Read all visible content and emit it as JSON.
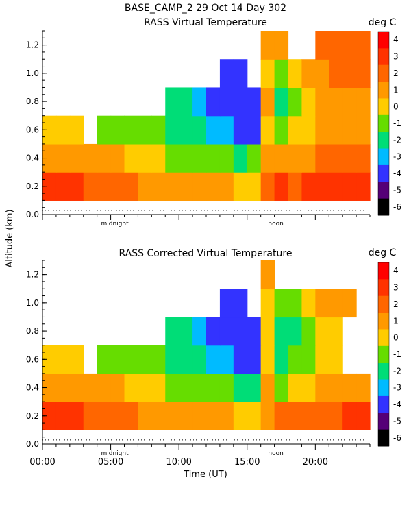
{
  "header": "BASE_CAMP_2  29 Oct 14 Day 302",
  "colorbar": {
    "unit": "deg C",
    "labels": [
      "4",
      "3",
      "2",
      "1",
      "0",
      "-1",
      "-2",
      "-3",
      "-4",
      "-5",
      "-6"
    ],
    "colors": [
      "#ff0000",
      "#ff3300",
      "#ff6600",
      "#ff9900",
      "#ffcc00",
      "#66dd00",
      "#00dd77",
      "#00bbff",
      "#3333ff",
      "#550077",
      "#000000"
    ]
  },
  "shared_axes": {
    "ylabel": "Altitude (km)",
    "xlabel": "Time (UT)",
    "yticks": [
      "0.0",
      "0.2",
      "0.4",
      "0.6",
      "0.8",
      "1.0",
      "1.2"
    ],
    "xticks": [
      "00:00",
      "05:00",
      "10:00",
      "15:00",
      "20:00"
    ],
    "markers": [
      "midnight",
      "noon"
    ]
  },
  "chart_data": [
    {
      "type": "heatmap",
      "title": "RASS Virtual Temperature",
      "xlabel": "Time (UT)",
      "ylabel": "Altitude (km)",
      "xlim": [
        0,
        24
      ],
      "ylim": [
        0,
        1.3
      ],
      "zunit": "deg C",
      "zlim": [
        -6,
        5
      ],
      "x": [
        0,
        1,
        2,
        3,
        4,
        5,
        6,
        7,
        8,
        9,
        10,
        11,
        12,
        13,
        14,
        15,
        16,
        17,
        18,
        19,
        20,
        21,
        22,
        23
      ],
      "y": [
        0.2,
        0.4,
        0.6,
        0.8,
        1.0,
        1.2
      ],
      "z": [
        [
          3,
          3,
          3,
          2,
          2,
          2,
          2,
          1,
          1,
          1,
          1,
          1,
          1,
          1,
          0,
          0,
          2,
          3,
          2,
          3,
          3,
          3,
          3,
          3
        ],
        [
          1,
          1,
          1,
          1,
          1,
          1,
          0,
          0,
          0,
          -1,
          -1,
          -1,
          -1,
          -1,
          -2,
          -1,
          1,
          1,
          1,
          1,
          2,
          2,
          2,
          2
        ],
        [
          0,
          0,
          0,
          null,
          -1,
          -1,
          -1,
          -1,
          -1,
          -2,
          -2,
          -2,
          -3,
          -3,
          -4,
          -4,
          0,
          -1,
          0,
          0,
          1,
          1,
          1,
          1
        ],
        [
          null,
          null,
          null,
          null,
          null,
          null,
          null,
          null,
          null,
          -2,
          -2,
          -3,
          -4,
          -4,
          -4,
          -4,
          1,
          -2,
          -1,
          0,
          1,
          1,
          1,
          1
        ],
        [
          null,
          null,
          null,
          null,
          null,
          null,
          null,
          null,
          null,
          null,
          null,
          null,
          null,
          -4,
          -4,
          null,
          0,
          -1,
          0,
          1,
          1,
          2,
          2,
          2
        ],
        [
          null,
          null,
          null,
          null,
          null,
          null,
          null,
          null,
          null,
          null,
          null,
          null,
          null,
          null,
          null,
          null,
          1,
          1,
          null,
          null,
          2,
          2,
          2,
          2
        ]
      ]
    },
    {
      "type": "heatmap",
      "title": "RASS Corrected Virtual Temperature",
      "xlabel": "Time (UT)",
      "ylabel": "Altitude (km)",
      "xlim": [
        0,
        24
      ],
      "ylim": [
        0,
        1.3
      ],
      "zunit": "deg C",
      "zlim": [
        -6,
        5
      ],
      "x": [
        0,
        1,
        2,
        3,
        4,
        5,
        6,
        7,
        8,
        9,
        10,
        11,
        12,
        13,
        14,
        15,
        16,
        17,
        18,
        19,
        20,
        21,
        22,
        23
      ],
      "y": [
        0.2,
        0.4,
        0.6,
        0.8,
        1.0,
        1.2
      ],
      "z": [
        [
          3,
          3,
          3,
          2,
          2,
          2,
          2,
          1,
          1,
          1,
          1,
          1,
          1,
          1,
          0,
          0,
          1,
          2,
          2,
          2,
          2,
          2,
          3,
          3
        ],
        [
          1,
          1,
          1,
          1,
          1,
          1,
          0,
          0,
          0,
          -1,
          -1,
          -1,
          -1,
          -1,
          -2,
          -2,
          1,
          -1,
          0,
          0,
          1,
          1,
          1,
          1
        ],
        [
          0,
          0,
          0,
          null,
          -1,
          -1,
          -1,
          -1,
          -1,
          -2,
          -2,
          -2,
          -3,
          -3,
          -4,
          -4,
          0,
          -2,
          -1,
          -1,
          0,
          0,
          null,
          null
        ],
        [
          null,
          null,
          null,
          null,
          null,
          null,
          null,
          null,
          null,
          -2,
          -2,
          -3,
          -4,
          -4,
          -4,
          -4,
          0,
          -2,
          -2,
          -1,
          0,
          0,
          null,
          null
        ],
        [
          null,
          null,
          null,
          null,
          null,
          null,
          null,
          null,
          null,
          null,
          null,
          null,
          null,
          -4,
          -4,
          null,
          0,
          -1,
          -1,
          0,
          1,
          1,
          1,
          null
        ],
        [
          null,
          null,
          null,
          null,
          null,
          null,
          null,
          null,
          null,
          null,
          null,
          null,
          null,
          null,
          null,
          null,
          1,
          null,
          null,
          null,
          null,
          null,
          null,
          null
        ]
      ]
    }
  ]
}
